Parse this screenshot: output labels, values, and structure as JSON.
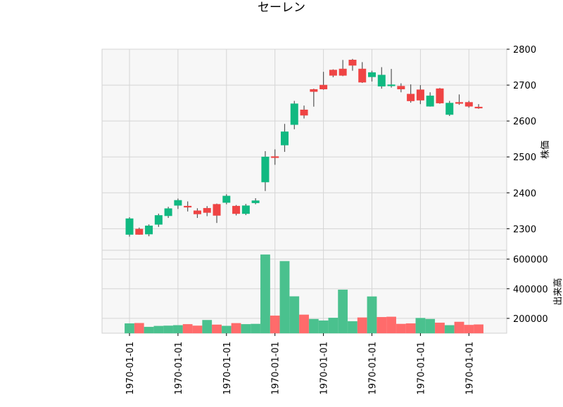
{
  "chart_data": [
    {
      "type": "candlestick",
      "title": "セーレン",
      "ylabel": "株価",
      "ylim": [
        2240,
        2800
      ],
      "y_ticks": [
        "2300",
        "2400",
        "2500",
        "2600",
        "2700",
        "2800"
      ],
      "grid": true,
      "colors": {
        "up": "#ef4444",
        "down": "#10b981",
        "wick": "#555555",
        "background": "#f7f7f7",
        "grid": "#d5d5d5"
      },
      "candles": [
        {
          "o": 2328,
          "h": 2332,
          "l": 2278,
          "c": 2284
        },
        {
          "o": 2284,
          "h": 2303,
          "l": 2283,
          "c": 2299
        },
        {
          "o": 2308,
          "h": 2312,
          "l": 2279,
          "c": 2285
        },
        {
          "o": 2337,
          "h": 2342,
          "l": 2305,
          "c": 2312
        },
        {
          "o": 2356,
          "h": 2361,
          "l": 2330,
          "c": 2336
        },
        {
          "o": 2379,
          "h": 2384,
          "l": 2355,
          "c": 2365
        },
        {
          "o": 2362,
          "h": 2376,
          "l": 2348,
          "c": 2363
        },
        {
          "o": 2341,
          "h": 2357,
          "l": 2330,
          "c": 2350
        },
        {
          "o": 2345,
          "h": 2363,
          "l": 2335,
          "c": 2357
        },
        {
          "o": 2337,
          "h": 2370,
          "l": 2316,
          "c": 2368
        },
        {
          "o": 2391,
          "h": 2396,
          "l": 2368,
          "c": 2373
        },
        {
          "o": 2342,
          "h": 2366,
          "l": 2337,
          "c": 2363
        },
        {
          "o": 2364,
          "h": 2369,
          "l": 2338,
          "c": 2342
        },
        {
          "o": 2378,
          "h": 2385,
          "l": 2368,
          "c": 2372
        },
        {
          "o": 2500,
          "h": 2516,
          "l": 2405,
          "c": 2430
        },
        {
          "o": 2500,
          "h": 2521,
          "l": 2478,
          "c": 2501
        },
        {
          "o": 2570,
          "h": 2592,
          "l": 2514,
          "c": 2533
        },
        {
          "o": 2648,
          "h": 2656,
          "l": 2577,
          "c": 2590
        },
        {
          "o": 2616,
          "h": 2643,
          "l": 2607,
          "c": 2631
        },
        {
          "o": 2682,
          "h": 2690,
          "l": 2640,
          "c": 2688
        },
        {
          "o": 2689,
          "h": 2737,
          "l": 2687,
          "c": 2700
        },
        {
          "o": 2727,
          "h": 2744,
          "l": 2722,
          "c": 2742
        },
        {
          "o": 2727,
          "h": 2770,
          "l": 2725,
          "c": 2745
        },
        {
          "o": 2755,
          "h": 2773,
          "l": 2740,
          "c": 2770
        },
        {
          "o": 2708,
          "h": 2764,
          "l": 2706,
          "c": 2745
        },
        {
          "o": 2735,
          "h": 2740,
          "l": 2710,
          "c": 2723
        },
        {
          "o": 2728,
          "h": 2750,
          "l": 2690,
          "c": 2697
        },
        {
          "o": 2701,
          "h": 2745,
          "l": 2693,
          "c": 2698
        },
        {
          "o": 2689,
          "h": 2705,
          "l": 2680,
          "c": 2697
        },
        {
          "o": 2656,
          "h": 2702,
          "l": 2651,
          "c": 2675
        },
        {
          "o": 2658,
          "h": 2700,
          "l": 2647,
          "c": 2687
        },
        {
          "o": 2670,
          "h": 2680,
          "l": 2640,
          "c": 2641
        },
        {
          "o": 2650,
          "h": 2692,
          "l": 2648,
          "c": 2690
        },
        {
          "o": 2650,
          "h": 2656,
          "l": 2614,
          "c": 2618
        },
        {
          "o": 2650,
          "h": 2674,
          "l": 2645,
          "c": 2652
        },
        {
          "o": 2641,
          "h": 2656,
          "l": 2637,
          "c": 2652
        },
        {
          "o": 2636,
          "h": 2647,
          "l": 2634,
          "c": 2639
        }
      ]
    },
    {
      "type": "bar",
      "ylabel": "出来高",
      "ylim": [
        100000,
        660000
      ],
      "y_ticks": [
        "200000",
        "400000",
        "600000"
      ],
      "grid": true,
      "x_tick_labels": [
        "1970-01-01",
        "1970-01-01",
        "1970-01-01",
        "1970-01-01",
        "1970-01-01",
        "1970-01-01",
        "1970-01-01",
        "1970-01-01"
      ],
      "colors": {
        "up": "#ff6b6b",
        "down": "#4ac18e"
      },
      "volumes": [
        {
          "v": 165000,
          "dir": "down"
        },
        {
          "v": 168000,
          "dir": "up"
        },
        {
          "v": 142000,
          "dir": "down"
        },
        {
          "v": 148000,
          "dir": "down"
        },
        {
          "v": 150000,
          "dir": "down"
        },
        {
          "v": 153000,
          "dir": "down"
        },
        {
          "v": 160000,
          "dir": "up"
        },
        {
          "v": 150000,
          "dir": "up"
        },
        {
          "v": 188000,
          "dir": "down"
        },
        {
          "v": 157000,
          "dir": "up"
        },
        {
          "v": 149000,
          "dir": "down"
        },
        {
          "v": 167000,
          "dir": "up"
        },
        {
          "v": 160000,
          "dir": "down"
        },
        {
          "v": 162000,
          "dir": "down"
        },
        {
          "v": 630000,
          "dir": "down"
        },
        {
          "v": 218000,
          "dir": "up"
        },
        {
          "v": 586000,
          "dir": "down"
        },
        {
          "v": 348000,
          "dir": "down"
        },
        {
          "v": 224000,
          "dir": "up"
        },
        {
          "v": 195000,
          "dir": "down"
        },
        {
          "v": 185000,
          "dir": "down"
        },
        {
          "v": 203000,
          "dir": "down"
        },
        {
          "v": 393000,
          "dir": "down"
        },
        {
          "v": 180000,
          "dir": "down"
        },
        {
          "v": 205000,
          "dir": "up"
        },
        {
          "v": 347000,
          "dir": "down"
        },
        {
          "v": 208000,
          "dir": "up"
        },
        {
          "v": 210000,
          "dir": "up"
        },
        {
          "v": 162000,
          "dir": "up"
        },
        {
          "v": 165000,
          "dir": "up"
        },
        {
          "v": 202000,
          "dir": "down"
        },
        {
          "v": 195000,
          "dir": "down"
        },
        {
          "v": 170000,
          "dir": "up"
        },
        {
          "v": 153000,
          "dir": "down"
        },
        {
          "v": 176000,
          "dir": "up"
        },
        {
          "v": 155000,
          "dir": "up"
        },
        {
          "v": 158000,
          "dir": "up"
        }
      ]
    }
  ]
}
